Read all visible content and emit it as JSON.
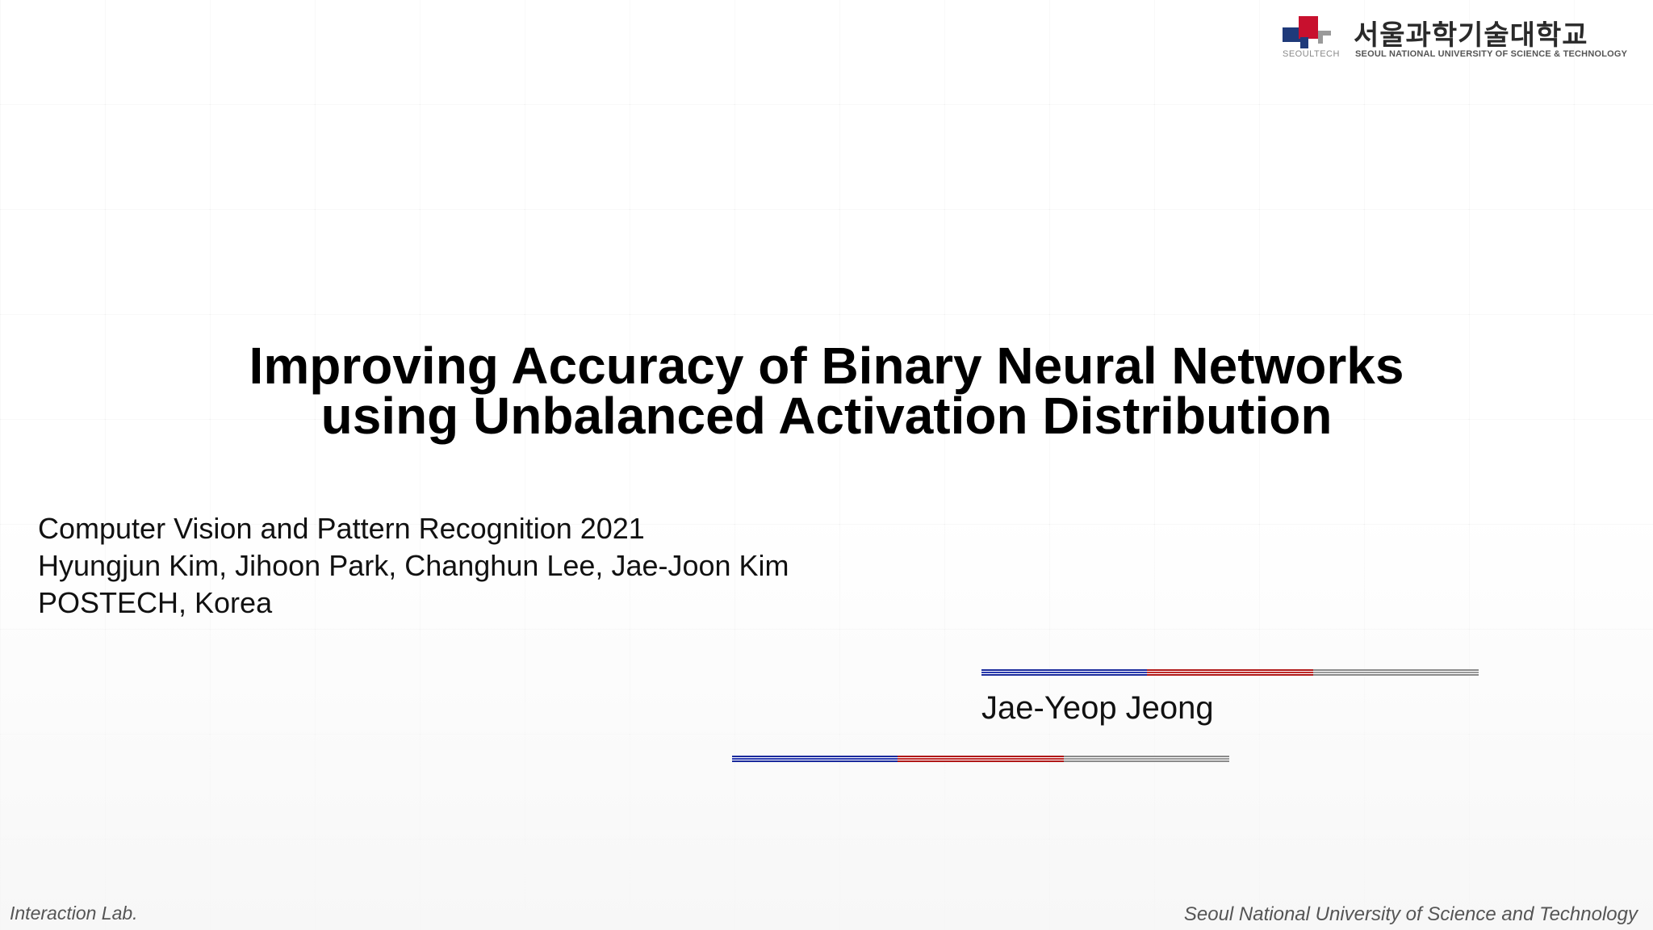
{
  "logo": {
    "korean_name": "서울과학기술대학교",
    "short_name": "SEOULTECH",
    "english_name": "SEOUL NATIONAL UNIVERSITY OF SCIENCE & TECHNOLOGY",
    "colors": {
      "navy": "#1f3a7a",
      "red": "#c8102e",
      "gray": "#9a9a9a"
    }
  },
  "title": {
    "line1": "Improving Accuracy of Binary Neural Networks",
    "line2": "using Unbalanced Activation Distribution"
  },
  "info": {
    "conference": "Computer Vision and Pattern Recognition 2021",
    "authors": "Hyungjun Kim, Jihoon Park, Changhun Lee, Jae-Joon Kim",
    "affiliation": "POSTECH, Korea"
  },
  "presenter": "Jae-Yeop Jeong",
  "decor": {
    "line_colors": [
      "#1a2a9c",
      "#b01818",
      "#8a8a8a"
    ]
  },
  "footer": {
    "left": "Interaction Lab.",
    "right": "Seoul National University of Science and Technology"
  }
}
